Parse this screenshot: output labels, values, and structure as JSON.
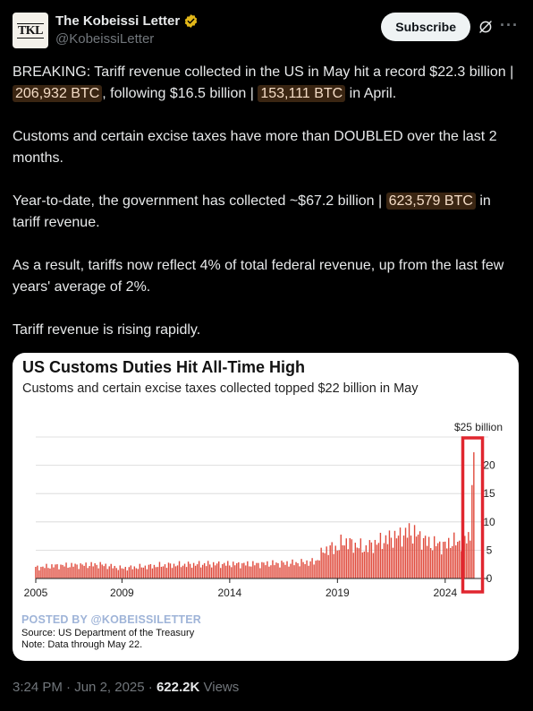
{
  "author": {
    "avatar_text": "TKL",
    "display_name": "The Kobeissi Letter",
    "handle": "@KobeissiLetter"
  },
  "header": {
    "subscribe_label": "Subscribe"
  },
  "tweet": {
    "p1_a": "BREAKING: Tariff revenue collected in the US in May hit a record $22.3 billion | ",
    "p1_btc1": "206,932 BTC",
    "p1_b": ", following $16.5 billion | ",
    "p1_btc2": "153,111 BTC",
    "p1_c": " in April.",
    "p2": "Customs and certain excise taxes have more than DOUBLED over the last 2 months.",
    "p3_a": "Year-to-date, the government has collected ~$67.2 billion | ",
    "p3_btc": "623,579 BTC",
    "p3_b": " in tariff revenue.",
    "p4": "As a result, tariffs now reflect 4% of total federal revenue, up from the last few years' average of 2%.",
    "p5": "Tariff revenue is rising rapidly."
  },
  "media": {
    "posted_by": "POSTED BY @KOBEISSILETTER",
    "source": "Source: US Department of the Treasury",
    "note": "Note: Data through May 22."
  },
  "footer": {
    "time": "3:24 PM",
    "sep1": " · ",
    "date": "Jun 2, 2025",
    "sep2": " · ",
    "views_count": "622.2K",
    "views_label": " Views"
  },
  "colors": {
    "bar": "#e04b3d",
    "highlight_box": "#e0262f",
    "btc_bg": "#3a2512"
  },
  "chart_data": {
    "type": "bar",
    "title": "US Customs Duties Hit All-Time High",
    "subtitle": "Customs and certain excise taxes collected topped $22 billion in May",
    "yunit_label": "$25 billion",
    "ylim": [
      0,
      25
    ],
    "yticks": [
      0,
      5,
      10,
      15,
      20
    ],
    "ytick_labels": [
      "0",
      "5",
      "10",
      "15",
      "20"
    ],
    "xticks": [
      2005,
      2009,
      2014,
      2019,
      2024
    ],
    "xtick_labels": [
      "2005",
      "2009",
      "2014",
      "2019",
      "2024"
    ],
    "x_start": 2005,
    "frequency": "monthly",
    "anchors": [
      [
        2005.0,
        2.1
      ],
      [
        2006.0,
        2.5
      ],
      [
        2007.0,
        2.6
      ],
      [
        2008.0,
        2.7
      ],
      [
        2009.0,
        2.0
      ],
      [
        2010.0,
        2.3
      ],
      [
        2011.0,
        2.6
      ],
      [
        2012.0,
        2.7
      ],
      [
        2013.0,
        2.8
      ],
      [
        2014.0,
        2.8
      ],
      [
        2015.0,
        2.8
      ],
      [
        2016.0,
        2.9
      ],
      [
        2017.0,
        3.0
      ],
      [
        2018.0,
        3.3
      ],
      [
        2018.4,
        5.6
      ],
      [
        2018.9,
        6.1
      ],
      [
        2019.0,
        5.8
      ],
      [
        2019.3,
        7.4
      ],
      [
        2019.6,
        6.8
      ],
      [
        2020.0,
        6.3
      ],
      [
        2020.3,
        5.8
      ],
      [
        2020.6,
        6.6
      ],
      [
        2021.0,
        7.2
      ],
      [
        2021.6,
        8.1
      ],
      [
        2022.0,
        8.4
      ],
      [
        2022.3,
        9.1
      ],
      [
        2022.6,
        8.8
      ],
      [
        2023.0,
        7.6
      ],
      [
        2023.3,
        6.8
      ],
      [
        2023.7,
        6.7
      ],
      [
        2024.0,
        6.4
      ],
      [
        2024.3,
        7.3
      ],
      [
        2024.6,
        7.0
      ],
      [
        2024.9,
        7.5
      ],
      [
        2025.0,
        7.9
      ],
      [
        2025.1,
        8.1
      ],
      [
        2025.2,
        9.6
      ],
      [
        2025.25,
        16.5
      ],
      [
        2025.33,
        22.3
      ]
    ],
    "highlight_range": [
      2024.9,
      2025.4
    ],
    "grid": true
  }
}
